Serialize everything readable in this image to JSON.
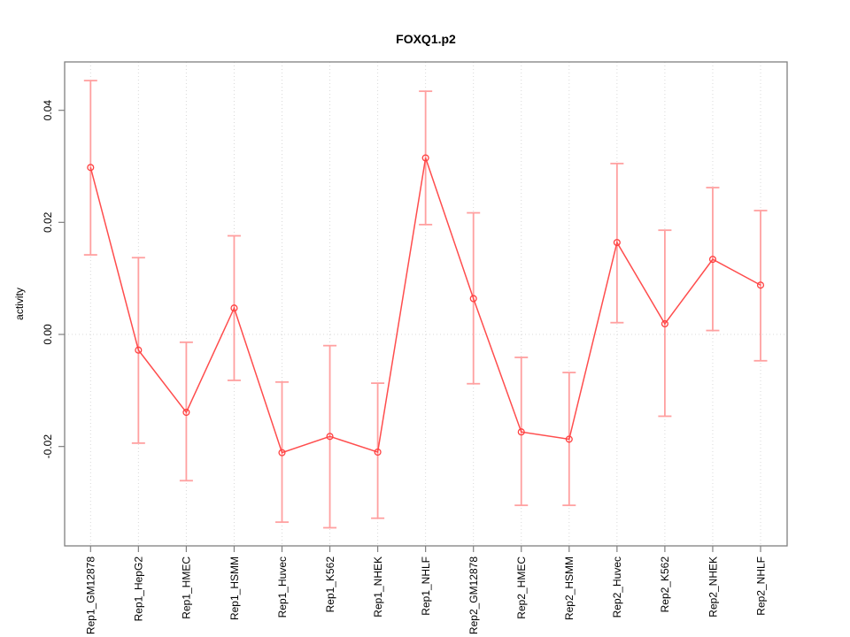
{
  "chart_data": {
    "type": "line",
    "title": "FOXQ1.p2",
    "xlabel": "",
    "ylabel": "activity",
    "categories": [
      "Rep1_GM12878",
      "Rep1_HepG2",
      "Rep1_HMEC",
      "Rep1_HSMM",
      "Rep1_Huvec",
      "Rep1_K562",
      "Rep1_NHEK",
      "Rep1_NHLF",
      "Rep2_GM12878",
      "Rep2_HMEC",
      "Rep2_HSMM",
      "Rep2_Huvec",
      "Rep2_K562",
      "Rep2_NHEK",
      "Rep2_NHLF"
    ],
    "series": [
      {
        "name": "activity",
        "marker": "open-circle",
        "values": [
          0.0298,
          -0.0028,
          -0.0139,
          0.0047,
          -0.0211,
          -0.0182,
          -0.021,
          0.0315,
          0.0064,
          -0.0174,
          -0.0187,
          0.0164,
          0.0019,
          0.0134,
          0.0088
        ],
        "error_lower": [
          0.0142,
          -0.0194,
          -0.0261,
          -0.0082,
          -0.0335,
          -0.0345,
          -0.0328,
          0.0196,
          -0.0088,
          -0.0305,
          -0.0305,
          0.0021,
          -0.0146,
          0.0007,
          -0.0047
        ],
        "error_upper": [
          0.0453,
          0.0137,
          -0.0014,
          0.0176,
          -0.0085,
          -0.002,
          -0.0087,
          0.0434,
          0.0217,
          -0.0041,
          -0.0068,
          0.0305,
          0.0186,
          0.0262,
          0.0221
        ]
      }
    ],
    "yticks": [
      -0.02,
      0,
      0.02,
      0.04
    ],
    "ytick_labels": [
      "-0.02",
      "0.00",
      "0.02",
      "0.04"
    ],
    "ylim": [
      -0.0378,
      0.0487
    ],
    "grid": {
      "vertical_dotted_at_each_category": true,
      "horizontal_dotted_at_zero": true
    },
    "legend": "none",
    "colors": {
      "line": "#ff4d4d",
      "marker": "#ff4040",
      "errorbar": "#ffa0a0",
      "grid": "#d9d9d9",
      "box": "#808080",
      "text": "#000000"
    }
  }
}
